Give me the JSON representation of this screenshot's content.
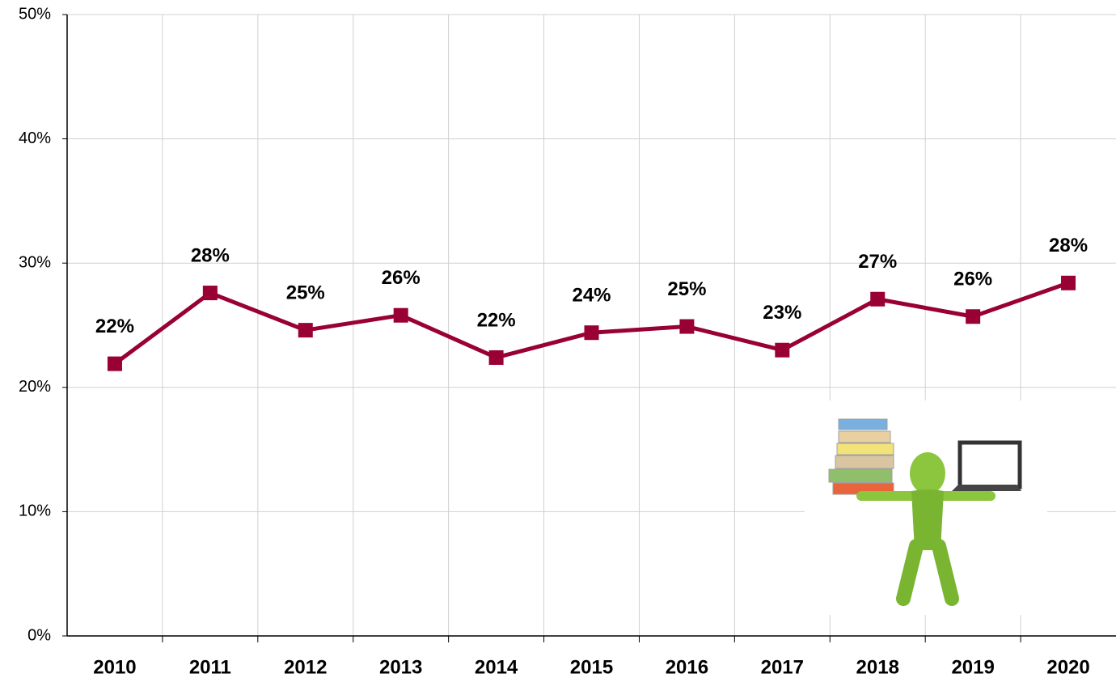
{
  "chart_data": {
    "type": "line",
    "categories": [
      "2010",
      "2011",
      "2012",
      "2013",
      "2014",
      "2015",
      "2016",
      "2017",
      "2018",
      "2019",
      "2020"
    ],
    "values": [
      21.9,
      27.6,
      24.6,
      25.8,
      22.4,
      24.4,
      24.9,
      23.0,
      27.1,
      25.7,
      28.4
    ],
    "value_labels": [
      "22%",
      "28%",
      "25%",
      "26%",
      "22%",
      "24%",
      "25%",
      "23%",
      "27%",
      "26%",
      "28%"
    ],
    "color": "#990033",
    "ylim": [
      0,
      50
    ],
    "yticks": [
      {
        "value": 0,
        "label": "0%"
      },
      {
        "value": 10,
        "label": "10%"
      },
      {
        "value": 20,
        "label": "20%"
      },
      {
        "value": 30,
        "label": "30%"
      },
      {
        "value": 40,
        "label": "40%"
      },
      {
        "value": 50,
        "label": "50%"
      }
    ],
    "grid": true
  }
}
